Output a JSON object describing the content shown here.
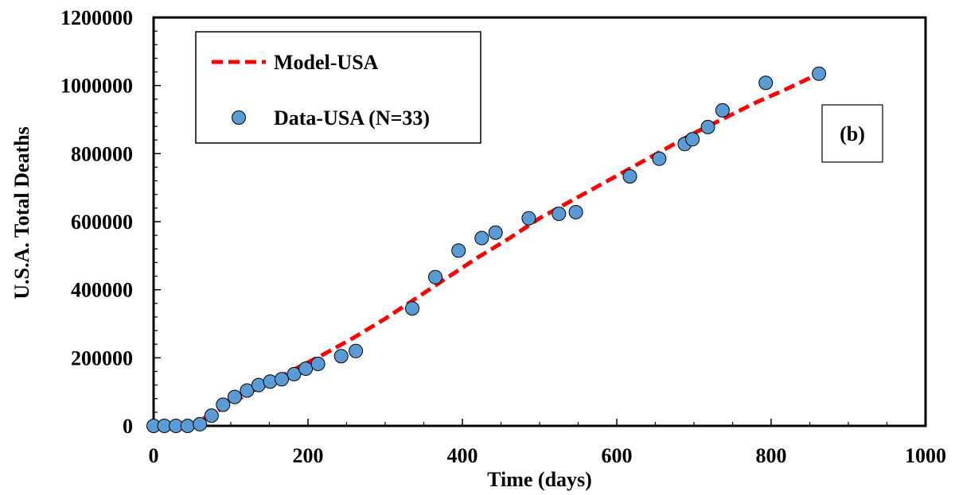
{
  "chart_data": {
    "type": "scatter",
    "xlabel": "Time (days)",
    "ylabel": "U.S.A. Total Deaths",
    "xlim": [
      0,
      1000
    ],
    "ylim": [
      0,
      1200000
    ],
    "xticks": [
      0,
      200,
      400,
      600,
      800,
      1000
    ],
    "yticks": [
      0,
      200000,
      400000,
      600000,
      800000,
      1000000,
      1200000
    ],
    "xtick_labels": [
      "0",
      "200",
      "400",
      "600",
      "800",
      "1000"
    ],
    "ytick_labels": [
      "0",
      "200000",
      "400000",
      "600000",
      "800000",
      "1000000",
      "1200000"
    ],
    "grid": false,
    "legend_position": "top-left",
    "panel_label": "(b)",
    "series": [
      {
        "name": "Model-USA",
        "kind": "line",
        "style": "dashed",
        "color": "#ff0000",
        "x": [
          45,
          70,
          100,
          130,
          160,
          190,
          220,
          260,
          300,
          340,
          380,
          420,
          460,
          500,
          540,
          580,
          620,
          660,
          700,
          740,
          780,
          820,
          862
        ],
        "y": [
          0,
          28000,
          65000,
          105000,
          140000,
          175000,
          210000,
          260000,
          315000,
          375000,
          435000,
          495000,
          550000,
          610000,
          660000,
          710000,
          760000,
          810000,
          860000,
          905000,
          950000,
          990000,
          1035000
        ]
      },
      {
        "name": "Data-USA (N=33)",
        "kind": "scatter",
        "color": "#5b9bd5",
        "x": [
          0,
          14,
          29,
          44,
          60,
          75,
          90,
          105,
          121,
          136,
          151,
          166,
          182,
          197,
          213,
          243,
          262,
          335,
          365,
          395,
          425,
          443,
          486,
          525,
          547,
          617,
          655,
          688,
          698,
          718,
          737,
          793,
          862
        ],
        "y": [
          0,
          0,
          0,
          0,
          5000,
          30000,
          62000,
          85000,
          104000,
          120000,
          130000,
          137000,
          152000,
          168000,
          182000,
          205000,
          220000,
          345000,
          437000,
          515000,
          552000,
          568000,
          610000,
          623000,
          628000,
          733000,
          785000,
          828000,
          842000,
          878000,
          927000,
          1008000,
          1035000
        ]
      }
    ]
  }
}
